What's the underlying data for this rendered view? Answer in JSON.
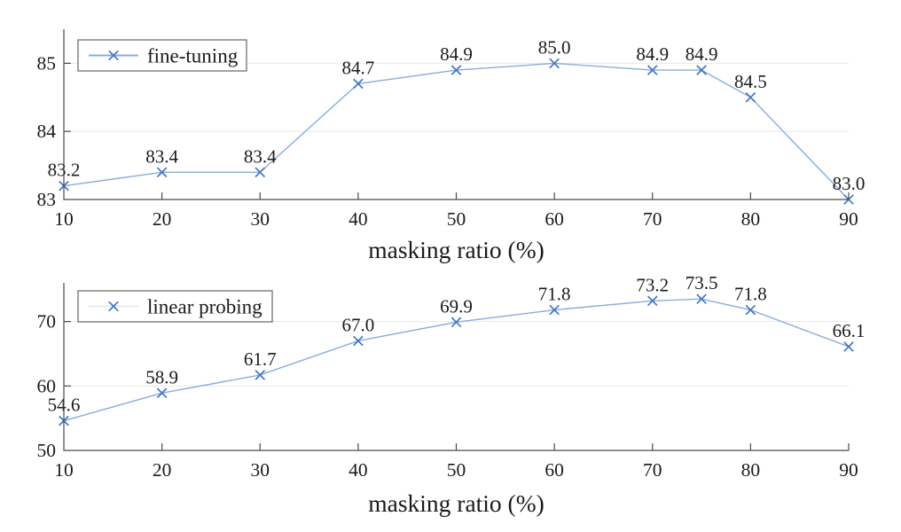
{
  "chart_data": [
    {
      "type": "line",
      "title": "",
      "xlabel": "masking ratio (%)",
      "ylabel": "",
      "legend": {
        "label": "fine-tuning",
        "position": "top-left"
      },
      "x": [
        10,
        20,
        30,
        40,
        50,
        60,
        70,
        75,
        80,
        90
      ],
      "values": [
        83.2,
        83.4,
        83.4,
        84.7,
        84.9,
        85.0,
        84.9,
        84.9,
        84.5,
        83.0
      ],
      "data_labels": [
        "83.2",
        "83.4",
        "83.4",
        "84.7",
        "84.9",
        "85.0",
        "84.9",
        "84.9",
        "84.5",
        "83.0"
      ],
      "xlim": [
        10,
        90
      ],
      "ylim": [
        83,
        85.5
      ],
      "xticks": [
        10,
        20,
        30,
        40,
        50,
        60,
        70,
        80,
        90
      ],
      "yticks": [
        83,
        84,
        85
      ],
      "grid": "horizontal",
      "marker": "x",
      "line_color": "#8aadd9",
      "marker_color": "#4377c6",
      "legend_line_color": "#8aadd9"
    },
    {
      "type": "line",
      "title": "",
      "xlabel": "masking ratio (%)",
      "ylabel": "",
      "legend": {
        "label": "linear probing",
        "position": "top-left"
      },
      "x": [
        10,
        20,
        30,
        40,
        50,
        60,
        70,
        75,
        80,
        90
      ],
      "values": [
        54.6,
        58.9,
        61.7,
        67.0,
        69.9,
        71.8,
        73.2,
        73.5,
        71.8,
        66.1
      ],
      "data_labels": [
        "54.6",
        "58.9",
        "61.7",
        "67.0",
        "69.9",
        "71.8",
        "73.2",
        "73.5",
        "71.8",
        "66.1"
      ],
      "xlim": [
        10,
        90
      ],
      "ylim": [
        50,
        76
      ],
      "xticks": [
        10,
        20,
        30,
        40,
        50,
        60,
        70,
        80,
        90
      ],
      "yticks": [
        50,
        60,
        70
      ],
      "grid": "horizontal",
      "marker": "x",
      "line_color": "#8aadd9",
      "marker_color": "#4377c6",
      "legend_line_color": "#e4ecf6"
    }
  ],
  "colors": {
    "background": "#ffffff",
    "axis": "#4a4a4a",
    "grid": "#e8e8e8",
    "text": "#1a1a1a",
    "series_line": "#8aadd9",
    "series_marker": "#4377c6",
    "legend_border": "#7a7a7a"
  }
}
